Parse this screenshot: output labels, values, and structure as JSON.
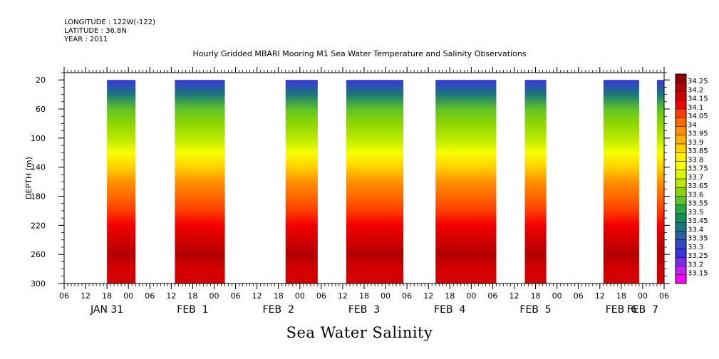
{
  "header": {
    "longitude": "LONGITUDE : 122W(-122)",
    "latitude": "LATITUDE : 36.8N",
    "year": "YEAR : 2011"
  },
  "title": "Hourly Gridded MBARI Mooring M1 Sea Water Temperature and Salinity Observations",
  "variable_title": "Sea Water Salinity",
  "chart_data": {
    "type": "heatmap",
    "title": "Hourly Gridded MBARI Mooring M1 Sea Water Temperature and Salinity Observations",
    "ylabel": "DEPTH (m)",
    "xlabel": "",
    "ylim": [
      300,
      10
    ],
    "y_ticks": [
      20,
      60,
      100,
      140,
      180,
      220,
      260,
      300
    ],
    "x_range_hours": [
      0,
      168
    ],
    "x_tick_labels": [
      "06",
      "12",
      "18",
      "00",
      "06",
      "12",
      "18",
      "00",
      "06",
      "12",
      "18",
      "00",
      "06",
      "12",
      "18",
      "00",
      "06",
      "12",
      "18",
      "00",
      "06",
      "12",
      "18",
      "00",
      "06",
      "12",
      "18",
      "00",
      "06"
    ],
    "day_labels": [
      {
        "label": "JAN 31",
        "hour": 12
      },
      {
        "label": "FEB  1",
        "hour": 36
      },
      {
        "label": "FEB  2",
        "hour": 60
      },
      {
        "label": "FEB  3",
        "hour": 84
      },
      {
        "label": "FEB  4",
        "hour": 108
      },
      {
        "label": "FEB  5",
        "hour": 132
      },
      {
        "label": "FEB  6",
        "hour": 156
      },
      {
        "label": "FEB  7",
        "hour": 162
      }
    ],
    "data_segments_hours": [
      [
        12,
        20
      ],
      [
        31,
        45
      ],
      [
        62,
        71
      ],
      [
        79,
        95
      ],
      [
        104,
        121
      ],
      [
        129,
        135
      ],
      [
        151,
        161
      ],
      [
        166,
        168
      ]
    ],
    "profile": {
      "depth": [
        20,
        40,
        60,
        80,
        100,
        120,
        140,
        160,
        180,
        200,
        220,
        240,
        260,
        280,
        300
      ],
      "salinity": [
        33.28,
        33.42,
        33.55,
        33.62,
        33.68,
        33.76,
        33.85,
        33.95,
        34.02,
        34.08,
        34.12,
        34.17,
        34.2,
        34.17,
        34.15
      ]
    },
    "colorbar": {
      "levels": [
        "34.25",
        "34.2",
        "34.15",
        "34.1",
        "34.05",
        "34",
        "33.95",
        "33.9",
        "33.85",
        "33.8",
        "33.75",
        "33.7",
        "33.65",
        "33.6",
        "33.55",
        "33.5",
        "33.45",
        "33.4",
        "33.35",
        "33.3",
        "33.25",
        "33.2",
        "33.15"
      ],
      "colors": [
        "#8b0000",
        "#b30000",
        "#d40000",
        "#f20000",
        "#ff3c00",
        "#ff6a00",
        "#ff9000",
        "#ffb000",
        "#ffd200",
        "#ffee00",
        "#f6ff00",
        "#dcf500",
        "#b8e800",
        "#8fd600",
        "#5ec22a",
        "#26a840",
        "#0f8f5a",
        "#1a7878",
        "#2c5fa0",
        "#3148c8",
        "#3a35e0",
        "#7a2cec",
        "#c020f0",
        "#ff00ff"
      ]
    }
  }
}
